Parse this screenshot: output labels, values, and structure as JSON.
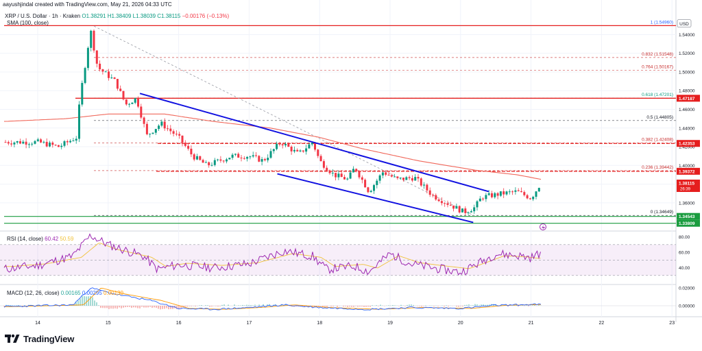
{
  "header": {
    "author": "aayushjindal created with TradingView.com, May 21, 2026 04:33 UTC",
    "title": "XRP / U.S. Dollar · 1h · Kraken",
    "o": "O1.38291",
    "h": "H1.38409",
    "l": "L1.38039",
    "c": "C1.38115",
    "change": "−0.00176 (−0.13%)",
    "sma_label": "SMA (100, close)",
    "currency": "USD"
  },
  "rsi_header": {
    "label": "RSI (14, close)",
    "v1": "60.42",
    "v2": "50.59"
  },
  "macd_header": {
    "label": "MACD (12, 26, close)",
    "v1": "0.00165",
    "v2": "0.00295",
    "v3": "0.00130"
  },
  "branding": {
    "logo_text": "TradingView"
  },
  "colors": {
    "up": "#089981",
    "down": "#f23645",
    "sma": "#f0675a",
    "channel": "#1010e0",
    "fib": "#e51e1e",
    "support": "#1a9c3f",
    "rsi": "#9c27b0",
    "macd": "#2962ff",
    "signal": "#ff9800"
  },
  "chart_data": {
    "type": "candlestick",
    "x_ticks": [
      "14",
      "15",
      "16",
      "17",
      "18",
      "19",
      "20",
      "21",
      "22",
      "23"
    ],
    "price_ticks": [
      "1.54000",
      "1.52000",
      "1.50000",
      "1.48000",
      "1.46000",
      "1.44000",
      "1.42000",
      "1.40000",
      "1.38000",
      "1.36000"
    ],
    "rsi_ticks": [
      "80.00",
      "60.00",
      "40.00"
    ],
    "macd_ticks": [
      "0.02000",
      "0.00000"
    ],
    "ylim": [
      1.332,
      1.555
    ],
    "price_tags": [
      {
        "label": "USD",
        "value": 1.5516,
        "kind": "plain"
      },
      {
        "label": "1.47187",
        "value": 1.47187,
        "kind": "fib"
      },
      {
        "label": "1.42353",
        "value": 1.42353,
        "kind": "fib"
      },
      {
        "label": "1.39372",
        "value": 1.39372,
        "kind": "fib"
      },
      {
        "label": "1.38115",
        "value": 1.38115,
        "kind": "price",
        "extra": "26:39"
      },
      {
        "label": "1.34543",
        "value": 1.34543,
        "kind": "support"
      },
      {
        "label": "1.33809",
        "value": 1.33809,
        "kind": "support"
      }
    ],
    "fib_levels": [
      {
        "label": "1 (1.54960)",
        "value": 1.5496,
        "color": "#2962ff"
      },
      {
        "label": "0.832 (1.51548)",
        "value": 1.51548,
        "color": "#c62828"
      },
      {
        "label": "0.764 (1.50167)",
        "value": 1.50167,
        "color": "#c62828"
      },
      {
        "label": "0.618 (1.47201)",
        "value": 1.47201,
        "color": "#089981"
      },
      {
        "label": "0.5 (1.44805)",
        "value": 1.44805,
        "color": "#131722"
      },
      {
        "label": "0.382 (1.42408)",
        "value": 1.42408,
        "color": "#c62828"
      },
      {
        "label": "0.236 (1.39442)",
        "value": 1.39442,
        "color": "#c62828"
      },
      {
        "label": "0 (1.34649)",
        "value": 1.34649,
        "color": "#131722"
      }
    ],
    "anchors": [
      {
        "x": 14.0,
        "y": 1.425
      },
      {
        "x": 14.3,
        "y": 1.42
      },
      {
        "x": 14.55,
        "y": 1.43
      },
      {
        "x": 14.6,
        "y": 1.472
      },
      {
        "x": 14.75,
        "y": 1.545
      },
      {
        "x": 14.85,
        "y": 1.505
      },
      {
        "x": 15.1,
        "y": 1.49
      },
      {
        "x": 15.25,
        "y": 1.465
      },
      {
        "x": 15.4,
        "y": 1.472
      },
      {
        "x": 15.55,
        "y": 1.432
      },
      {
        "x": 15.75,
        "y": 1.445
      },
      {
        "x": 16.0,
        "y": 1.43
      },
      {
        "x": 16.2,
        "y": 1.41
      },
      {
        "x": 16.4,
        "y": 1.4
      },
      {
        "x": 16.75,
        "y": 1.41
      },
      {
        "x": 17.0,
        "y": 1.41
      },
      {
        "x": 17.2,
        "y": 1.405
      },
      {
        "x": 17.45,
        "y": 1.425
      },
      {
        "x": 17.7,
        "y": 1.412
      },
      {
        "x": 17.9,
        "y": 1.425
      },
      {
        "x": 18.0,
        "y": 1.405
      },
      {
        "x": 18.2,
        "y": 1.39
      },
      {
        "x": 18.4,
        "y": 1.385
      },
      {
        "x": 18.5,
        "y": 1.398
      },
      {
        "x": 18.7,
        "y": 1.372
      },
      {
        "x": 18.9,
        "y": 1.393
      },
      {
        "x": 19.1,
        "y": 1.385
      },
      {
        "x": 19.35,
        "y": 1.387
      },
      {
        "x": 19.6,
        "y": 1.368
      },
      {
        "x": 19.85,
        "y": 1.358
      },
      {
        "x": 20.05,
        "y": 1.35
      },
      {
        "x": 20.2,
        "y": 1.355
      },
      {
        "x": 20.3,
        "y": 1.366
      },
      {
        "x": 20.6,
        "y": 1.37
      },
      {
        "x": 20.8,
        "y": 1.372
      },
      {
        "x": 21.0,
        "y": 1.365
      },
      {
        "x": 21.15,
        "y": 1.382
      }
    ],
    "sma_line": [
      {
        "x": 13.5,
        "y": 1.447
      },
      {
        "x": 14.4,
        "y": 1.45
      },
      {
        "x": 15.0,
        "y": 1.455
      },
      {
        "x": 15.8,
        "y": 1.455
      },
      {
        "x": 16.5,
        "y": 1.447
      },
      {
        "x": 17.3,
        "y": 1.44
      },
      {
        "x": 18.0,
        "y": 1.43
      },
      {
        "x": 18.6,
        "y": 1.418
      },
      {
        "x": 19.4,
        "y": 1.405
      },
      {
        "x": 20.2,
        "y": 1.395
      },
      {
        "x": 20.8,
        "y": 1.39
      },
      {
        "x": 21.15,
        "y": 1.385
      }
    ],
    "channel_upper": [
      {
        "x": 15.45,
        "y": 1.477
      },
      {
        "x": 20.4,
        "y": 1.372
      }
    ],
    "channel_lower": [
      {
        "x": 17.4,
        "y": 1.391
      },
      {
        "x": 20.18,
        "y": 1.339
      }
    ],
    "diagonal_fib": [
      {
        "x": 14.8,
        "y": 1.549
      },
      {
        "x": 20.2,
        "y": 1.346
      }
    ],
    "rsi_anchors": [
      {
        "x": 13.5,
        "y": 38
      },
      {
        "x": 14.0,
        "y": 43
      },
      {
        "x": 14.5,
        "y": 55
      },
      {
        "x": 14.75,
        "y": 82
      },
      {
        "x": 15.0,
        "y": 70
      },
      {
        "x": 15.5,
        "y": 55
      },
      {
        "x": 15.7,
        "y": 38
      },
      {
        "x": 16.0,
        "y": 44
      },
      {
        "x": 16.5,
        "y": 40
      },
      {
        "x": 17.0,
        "y": 45
      },
      {
        "x": 17.5,
        "y": 62
      },
      {
        "x": 17.9,
        "y": 55
      },
      {
        "x": 18.1,
        "y": 38
      },
      {
        "x": 18.5,
        "y": 42
      },
      {
        "x": 18.7,
        "y": 35
      },
      {
        "x": 19.0,
        "y": 58
      },
      {
        "x": 19.3,
        "y": 45
      },
      {
        "x": 19.6,
        "y": 40
      },
      {
        "x": 20.0,
        "y": 34
      },
      {
        "x": 20.3,
        "y": 48
      },
      {
        "x": 20.5,
        "y": 58
      },
      {
        "x": 20.8,
        "y": 56
      },
      {
        "x": 21.0,
        "y": 53
      },
      {
        "x": 21.15,
        "y": 60
      }
    ],
    "macd_anchors": [
      {
        "x": 13.5,
        "y": -0.001
      },
      {
        "x": 14.5,
        "y": 0.001
      },
      {
        "x": 14.75,
        "y": 0.02
      },
      {
        "x": 15.1,
        "y": 0.013
      },
      {
        "x": 15.6,
        "y": 0.006
      },
      {
        "x": 16.0,
        "y": -0.003
      },
      {
        "x": 16.5,
        "y": -0.004
      },
      {
        "x": 17.0,
        "y": -0.002
      },
      {
        "x": 17.5,
        "y": 0.001
      },
      {
        "x": 18.0,
        "y": -0.002
      },
      {
        "x": 18.7,
        "y": -0.004
      },
      {
        "x": 19.3,
        "y": -0.002
      },
      {
        "x": 20.0,
        "y": -0.003
      },
      {
        "x": 20.5,
        "y": 0.0005
      },
      {
        "x": 21.15,
        "y": 0.0016
      }
    ]
  }
}
